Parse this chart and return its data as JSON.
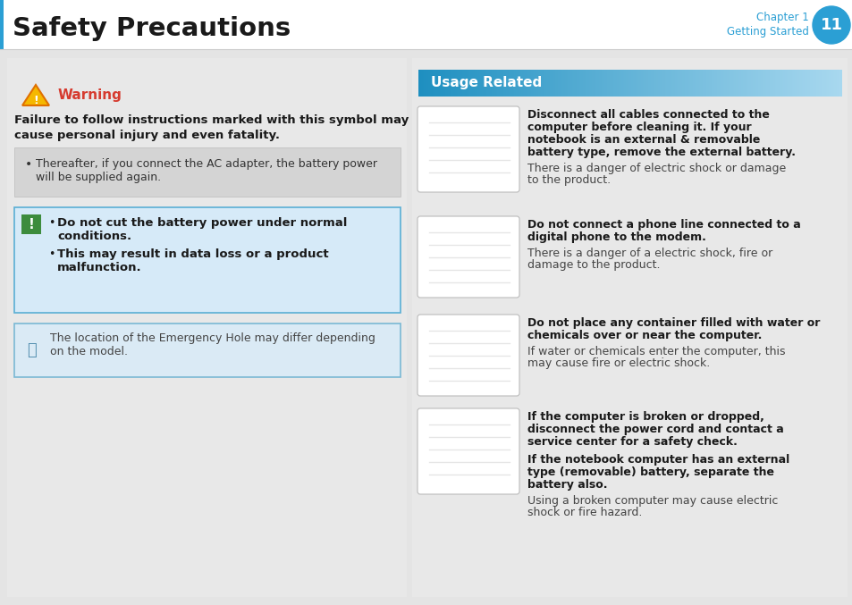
{
  "title": "Safety Precautions",
  "chapter_label": "Chapter 1",
  "chapter_sub": "Getting Started",
  "chapter_num": "11",
  "header_title_color": "#1a1a1a",
  "chapter_circle_color": "#2b9fd4",
  "chapter_text_color": "#2b9fd4",
  "page_bg": "#e4e4e4",
  "left_content_bg": "#e8e8e8",
  "right_panel_bg": "#e8e8e8",
  "warning_color": "#d63b2f",
  "warning_text": "Warning",
  "failure_text_line1": "Failure to follow instructions marked with this symbol may",
  "failure_text_line2": "cause personal injury and even fatality.",
  "bullet1_text_line1": "Thereafter, if you connect the AC adapter, the battery power",
  "bullet1_text_line2": "will be supplied again.",
  "caution_box_bg": "#d6eaf8",
  "caution_box_border": "#5aafd4",
  "caution_icon_bg": "#3d8c3d",
  "caution_line1a": "Do not cut the battery power under normal",
  "caution_line1b": "conditions.",
  "caution_line2a": "This may result in data loss or a product",
  "caution_line2b": "malfunction.",
  "note_box_bg": "#daeaf5",
  "note_box_border": "#7ab8d4",
  "note_text_line1": "The location of the Emergency Hole may differ depending",
  "note_text_line2": "on the model.",
  "usage_header_text": "Usage Related",
  "usage_header_bg1": "#1e8fc0",
  "usage_header_bg2": "#a8d8ef",
  "items": [
    {
      "bold1": "Disconnect all cables connected to the",
      "bold2": "computer before cleaning it. If your",
      "bold3": "notebook is an external & removable",
      "bold4": "battery type, remove the external battery.",
      "normal1": "There is a danger of electric shock or damage",
      "normal2": "to the product."
    },
    {
      "bold1": "Do not connect a phone line connected to a",
      "bold2": "digital phone to the modem.",
      "bold3": "",
      "bold4": "",
      "normal1": "There is a danger of a electric shock, fire or",
      "normal2": "damage to the product."
    },
    {
      "bold1": "Do not place any container filled with water or",
      "bold2": "chemicals over or near the computer.",
      "bold3": "",
      "bold4": "",
      "normal1": "If water or chemicals enter the computer, this",
      "normal2": "may cause fire or electric shock."
    },
    {
      "bold1": "If the computer is broken or dropped,",
      "bold2": "disconnect the power cord and contact a",
      "bold3": "service center for a safety check.",
      "bold4": "",
      "bold5": "If the notebook computer has an external",
      "bold6": "type (removable) battery, separate the",
      "bold7": "battery also.",
      "normal1": "Using a broken computer may cause electric",
      "normal2": "shock or fire hazard."
    }
  ]
}
